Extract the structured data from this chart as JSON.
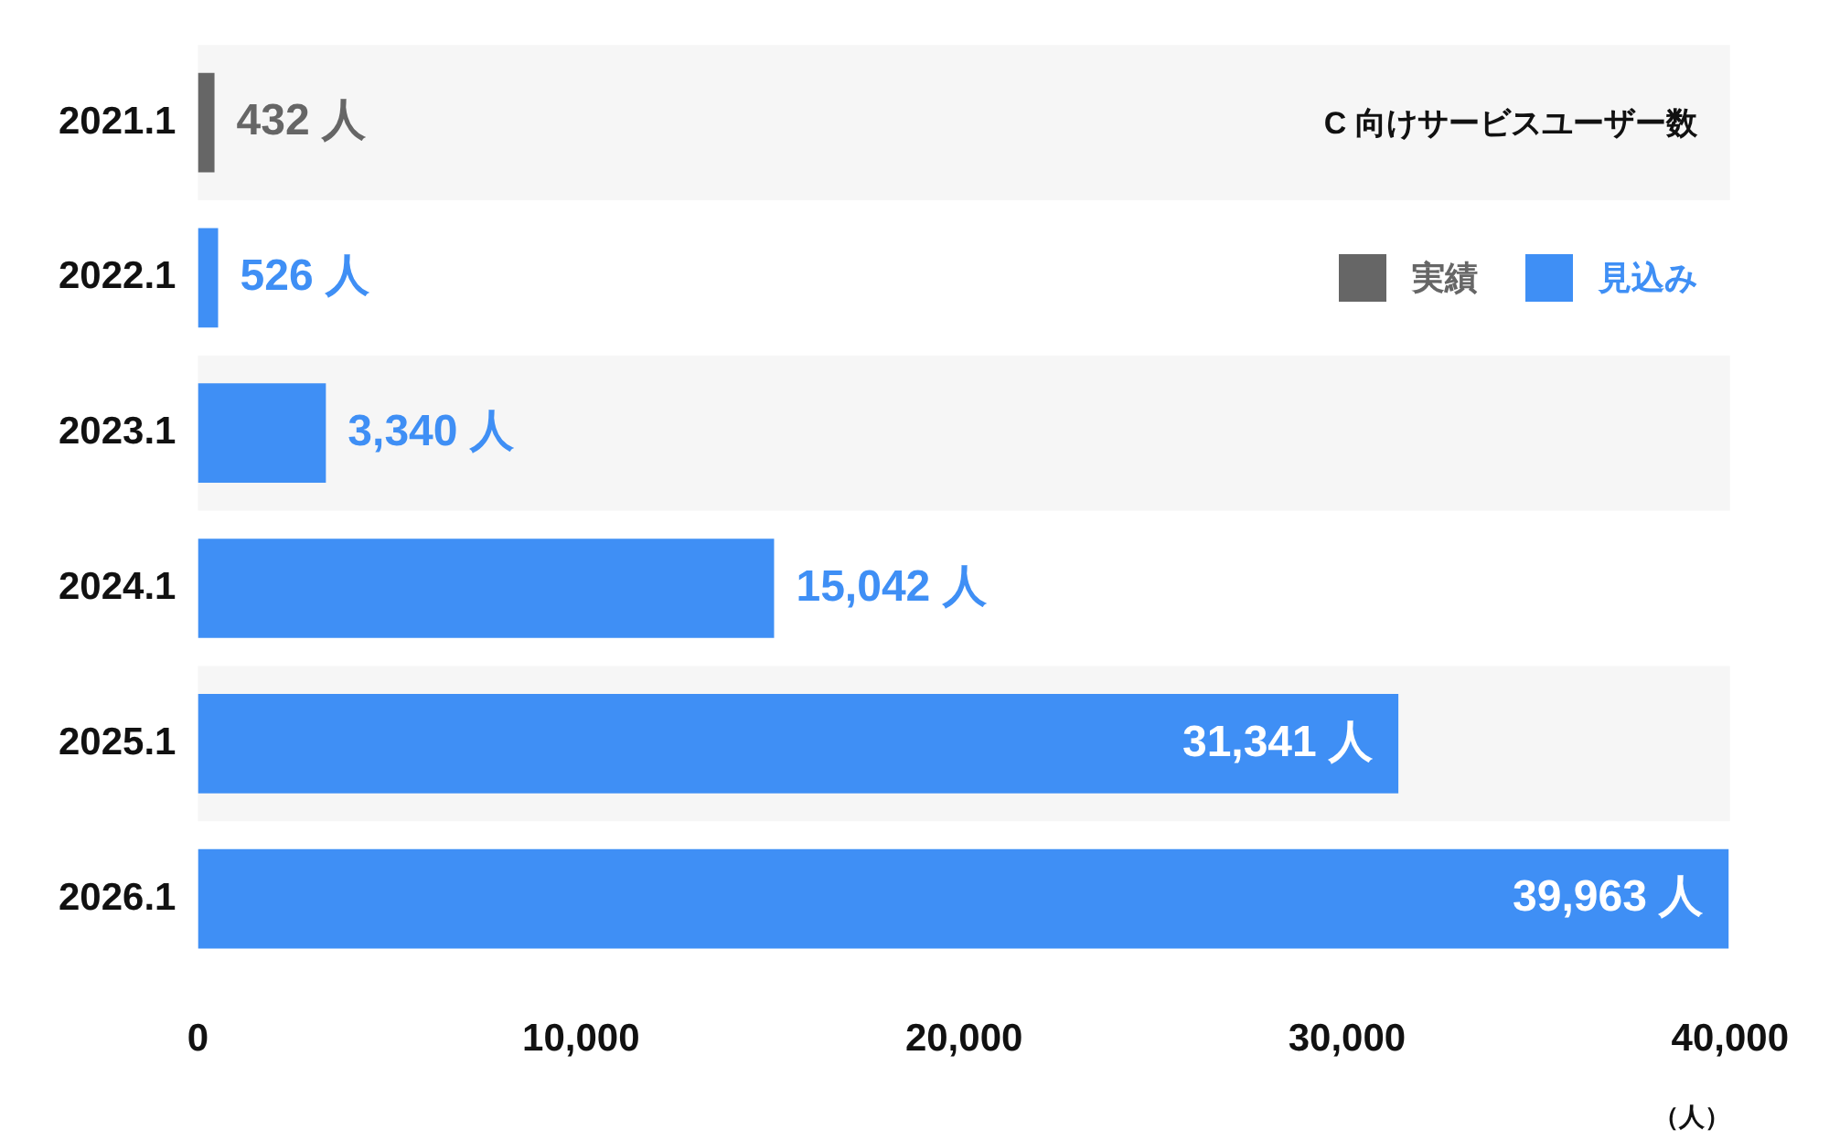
{
  "chart_data": {
    "type": "bar",
    "orientation": "horizontal",
    "stacked": true,
    "title": "C 向けサービスユーザー数",
    "xlabel": "（人）",
    "categories": [
      "2021.1",
      "2022.1",
      "2023.1",
      "2024.1",
      "2025.1",
      "2026.1"
    ],
    "series": [
      {
        "name": "実績",
        "color": "#666666",
        "values": [
          432,
          null,
          null,
          null,
          null,
          null
        ],
        "value_labels": [
          "432 人",
          null,
          null,
          null,
          null,
          null
        ]
      },
      {
        "name": "見込み",
        "color": "#3f8ff5",
        "values": [
          null,
          526,
          3340,
          15042,
          31341,
          39963
        ],
        "value_labels": [
          null,
          "526 人",
          "3,340 人",
          "15,042 人",
          "31,341 人",
          "39,963 人"
        ]
      }
    ],
    "xlim": [
      0,
      40000
    ],
    "xticks": [
      0,
      {
        "value": 10000,
        "label": "10,000"
      },
      {
        "value": 20000,
        "label": "20,000"
      },
      {
        "value": 30000,
        "label": "30,000"
      },
      {
        "value": 40000,
        "label": "40,000"
      }
    ],
    "grid": false,
    "legend": "top right"
  }
}
